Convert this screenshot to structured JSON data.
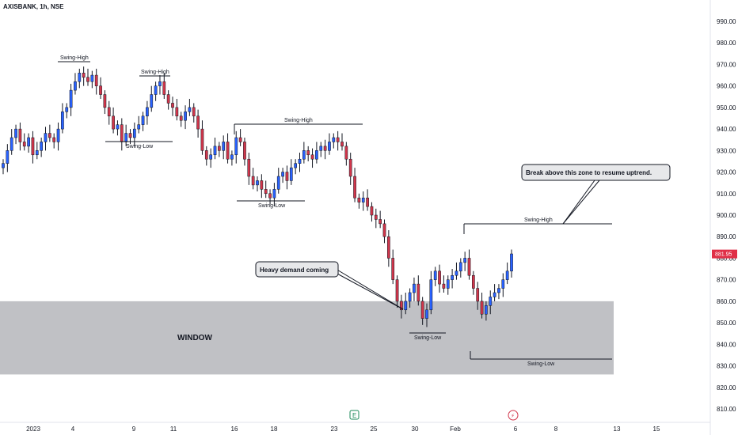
{
  "chart_title": "AXISBANK, 1h, NSE",
  "chart_data": {
    "type": "candlestick",
    "title": "AXISBANK, 1h, NSE",
    "ylim": [
      805,
      995
    ],
    "y_ticks": [
      810,
      820,
      830,
      840,
      850,
      860,
      870,
      880,
      890,
      900,
      910,
      920,
      930,
      940,
      950,
      960,
      970,
      980,
      990
    ],
    "x_tick_labels": [
      "2023",
      "4",
      "9",
      "11",
      "16",
      "18",
      "23",
      "25",
      "30",
      "Feb",
      "6",
      "8",
      "13",
      "15"
    ],
    "last_price": "881.95",
    "zone": {
      "label": "WINDOW",
      "low": 826,
      "high": 860
    },
    "closes": [
      924,
      930,
      936,
      940,
      934,
      932,
      936,
      928,
      930,
      934,
      938,
      936,
      934,
      940,
      948,
      950,
      958,
      962,
      966,
      964,
      962,
      965,
      960,
      956,
      950,
      946,
      940,
      942,
      934,
      938,
      936,
      940,
      942,
      946,
      950,
      956,
      960,
      962,
      956,
      952,
      950,
      946,
      944,
      948,
      950,
      946,
      940,
      930,
      926,
      928,
      932,
      930,
      934,
      926,
      928,
      936,
      934,
      926,
      918,
      914,
      916,
      912,
      910,
      908,
      912,
      918,
      920,
      916,
      922,
      924,
      926,
      930,
      928,
      926,
      930,
      932,
      930,
      934,
      936,
      934,
      932,
      926,
      918,
      908,
      906,
      908,
      904,
      900,
      898,
      896,
      890,
      880,
      870,
      860,
      856,
      860,
      864,
      868,
      860,
      852,
      856,
      870,
      874,
      868,
      866,
      870,
      872,
      874,
      878,
      880,
      872,
      866,
      860,
      854,
      858,
      862,
      864,
      866,
      870,
      874,
      882
    ]
  },
  "annotations": {
    "swing_high_1": "Swing-High",
    "swing_high_2": "Swing-High",
    "swing_high_3": "Swing-High",
    "swing_high_4": "Swing-High",
    "swing_low_1": "Swing-Low",
    "swing_low_2": "Swing-Low",
    "swing_low_3": "Swing-Low",
    "swing_low_4": "Swing-Low",
    "callout_demand": "Heavy demand coming",
    "callout_breakout": "Break above this zone to resume uptrend.",
    "window_label": "WINDOW"
  },
  "markers": {
    "earnings_icon": "E",
    "dividend_icon": "⚡"
  },
  "colors": {
    "up": "#2962ff",
    "down": "#d1364b",
    "zone": "#bdbec2",
    "price_tag": "#e02f47"
  }
}
